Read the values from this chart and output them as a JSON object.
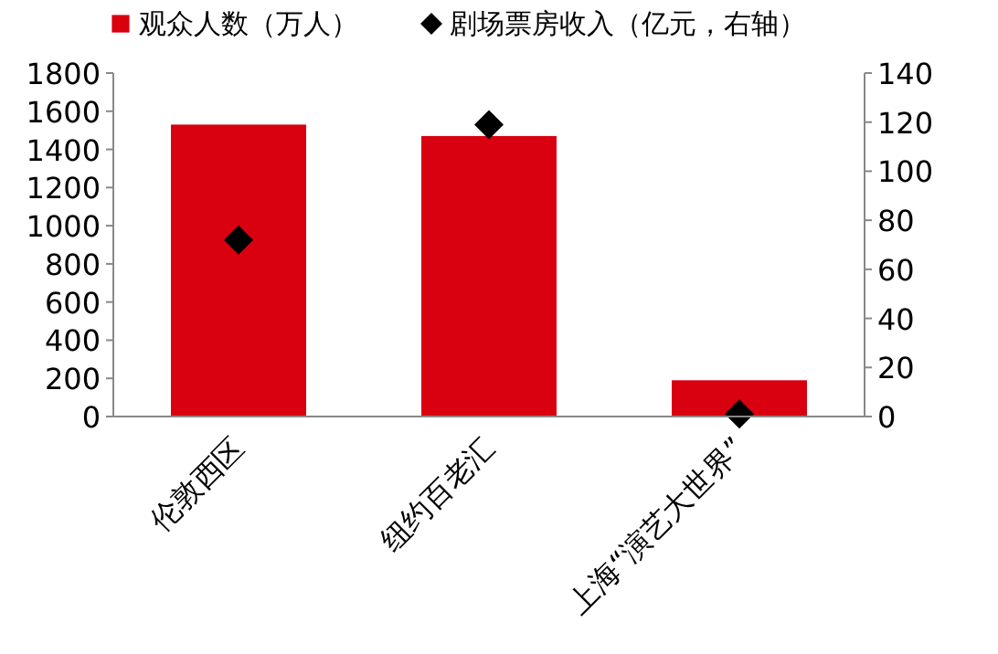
{
  "chart_data": {
    "type": "bar",
    "categories": [
      "伦敦西区",
      "纽约百老汇",
      "上海“演艺大世界”"
    ],
    "series": [
      {
        "name": "观众人数（万人）",
        "color": "#d9000f",
        "values": [
          1530,
          1470,
          190
        ]
      },
      {
        "name": "剧场票房收入（亿元，右轴）",
        "type": "scatter",
        "axis": "y2",
        "color": "#000000",
        "marker": "diamond",
        "values": [
          72,
          119,
          1
        ]
      }
    ],
    "ylim": [
      0,
      1800
    ],
    "yticks": [
      0,
      200,
      400,
      600,
      800,
      1000,
      1200,
      1400,
      1600,
      1800
    ],
    "y2lim": [
      0,
      140
    ],
    "y2ticks": [
      0,
      20,
      40,
      60,
      80,
      100,
      120,
      140
    ],
    "legend": "top",
    "grid": false
  }
}
